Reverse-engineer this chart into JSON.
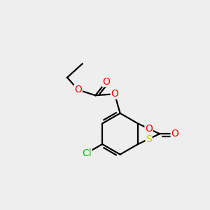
{
  "background_color": "#eeeeee",
  "bond_color": "#000000",
  "atom_colors": {
    "O": "#ff0000",
    "S": "#cccc00",
    "Cl": "#00bb00",
    "C": "#000000"
  },
  "figsize": [
    3.0,
    3.0
  ],
  "dpi": 100
}
